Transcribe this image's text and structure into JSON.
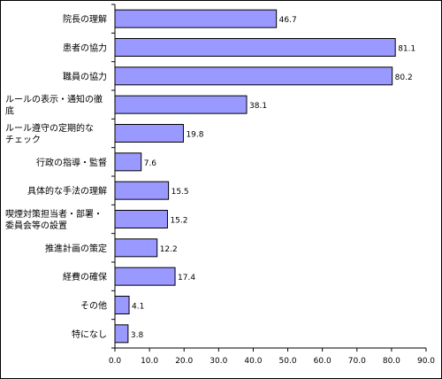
{
  "chart_data": {
    "type": "bar",
    "orientation": "horizontal",
    "categories": [
      [
        "院長の理解"
      ],
      [
        "患者の協力"
      ],
      [
        "職員の協力"
      ],
      [
        "ルールの表示・通知の徹",
        "底"
      ],
      [
        "ルール遵守の定期的な",
        "チェック"
      ],
      [
        "行政の指導・監督"
      ],
      [
        "具体的な手法の理解"
      ],
      [
        "喫煙対策担当者・部署・",
        "委員会等の設置"
      ],
      [
        "推進計画の策定"
      ],
      [
        "経費の確保"
      ],
      [
        "その他"
      ],
      [
        "特になし"
      ]
    ],
    "values": [
      46.7,
      81.1,
      80.2,
      38.1,
      19.8,
      7.6,
      15.5,
      15.2,
      12.2,
      17.4,
      4.1,
      3.8
    ],
    "value_labels": [
      "46.7",
      "81.1",
      "80.2",
      "38.1",
      "19.8",
      "7.6",
      "15.5",
      "15.2",
      "12.2",
      "17.4",
      "4.1",
      "3.8"
    ],
    "xlim": [
      0,
      90
    ],
    "xticks": [
      0,
      10,
      20,
      30,
      40,
      50,
      60,
      70,
      80,
      90
    ],
    "xtick_labels": [
      "0.0",
      "10.0",
      "20.0",
      "30.0",
      "40.0",
      "50.0",
      "60.0",
      "70.0",
      "80.0",
      "90.0"
    ],
    "grid": false,
    "bar_color": "#9999ff",
    "bar_edge_color": "#000000",
    "title": "",
    "xlabel": "",
    "ylabel": ""
  }
}
